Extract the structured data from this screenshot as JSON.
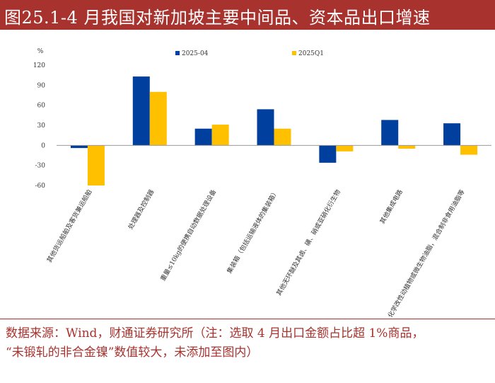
{
  "title": "图25.1-4 月我国对新加坡主要中间品、资本品出口增速",
  "source": {
    "line1": "数据来源：Wind，财通证券研究所（注：选取 4 月出口金额占比超 1%商品，",
    "line2": "“未锻轧的非合金镍”数值较大，未添加至图内）"
  },
  "colors": {
    "series1": "#003f9e",
    "series2": "#ffc000"
  },
  "chart_data": {
    "type": "bar",
    "unit_label": "%",
    "ylim": [
      -60,
      120
    ],
    "yticks": [
      -60,
      -30,
      0,
      30,
      60,
      90,
      120
    ],
    "legend_position": "top",
    "grid": false,
    "categories": [
      "其他货运船舶及客货兼运船舶",
      "处理器及控制器",
      "重量≤10kg的便携自动数据处理设备",
      "集装箱（包括运输液体的集装箱）",
      "其他无环醚及其卤、磺、硝或亚硝化衍生物",
      "其他集成电路",
      "化学改性动植物或微生物油脂，混合制非食用油脂等"
    ],
    "series": [
      {
        "name": "2025-04",
        "values": [
          -4,
          103,
          25,
          54,
          -26,
          38,
          33
        ]
      },
      {
        "name": "2025Q1",
        "values": [
          -60,
          80,
          31,
          25,
          -9,
          -5,
          -14
        ]
      }
    ]
  }
}
